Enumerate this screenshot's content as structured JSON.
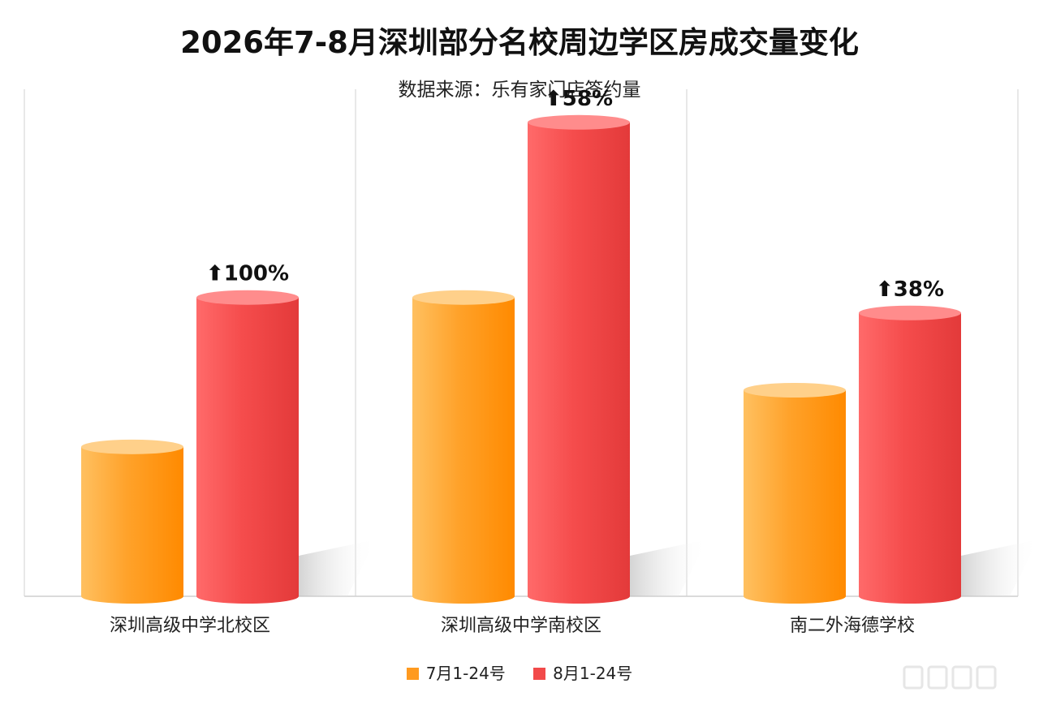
{
  "title": "2026年7-8月深圳部分名校周边学区房成交量变化",
  "subtitle": "数据来源：乐有家门店签约量",
  "colors": {
    "july": "#ff9a1f",
    "august": "#f24a4a"
  },
  "chart_data": {
    "type": "bar",
    "title": "2026年7-8月深圳部分名校周边学区房成交量变化",
    "subtitle": "数据来源：乐有家门店签约量",
    "categories": [
      "深圳高级中学北校区",
      "深圳高级中学南校区",
      "南二外海德学校"
    ],
    "series": [
      {
        "name": "7月1-24号",
        "values": [
          29,
          58,
          40
        ]
      },
      {
        "name": "8月1-24号",
        "values": [
          58,
          92,
          55
        ]
      }
    ],
    "annotations": [
      "⬆100%",
      "⬆58%",
      "⬆38%"
    ],
    "ylim": [
      0,
      100
    ],
    "grid": false,
    "legend": "bottom",
    "xlabel": "",
    "ylabel": ""
  }
}
